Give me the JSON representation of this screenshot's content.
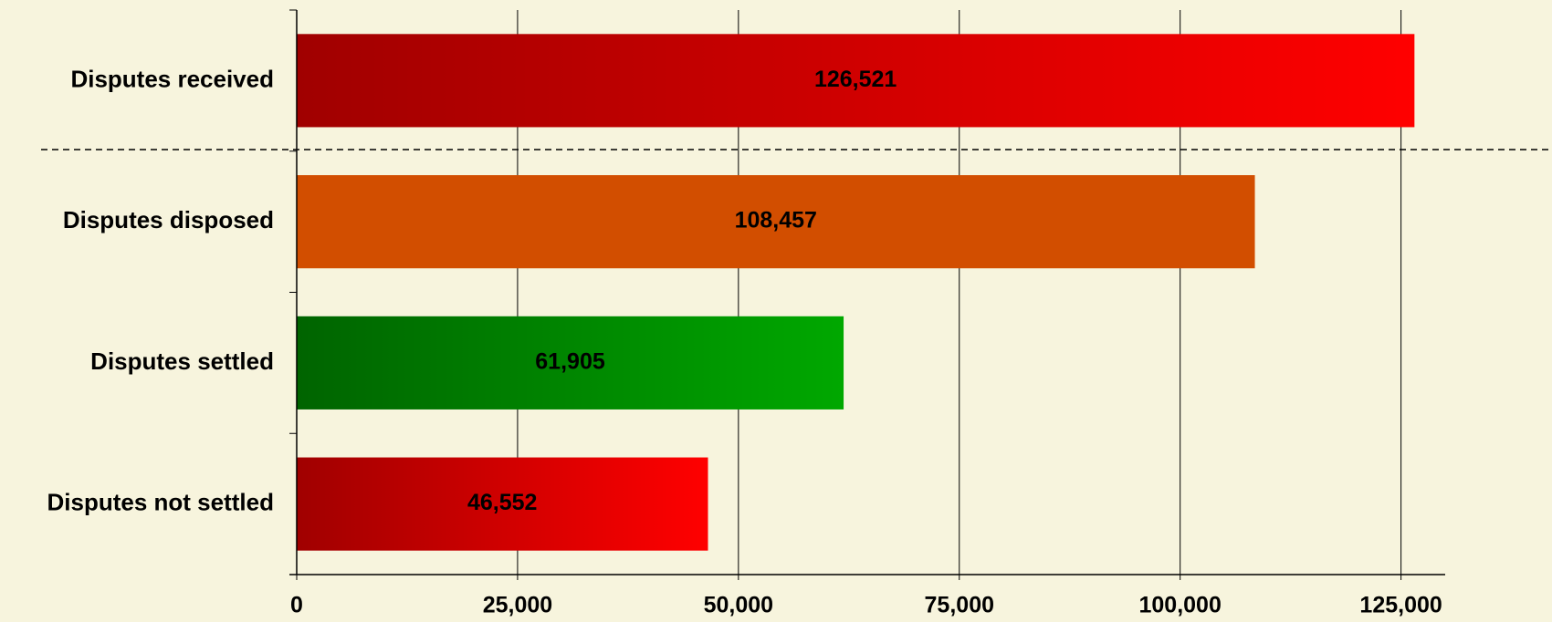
{
  "chart_data": {
    "type": "bar",
    "orientation": "horizontal",
    "categories": [
      "Disputes received",
      "Disputes disposed",
      "Disputes settled",
      "Disputes not settled"
    ],
    "values": [
      126521,
      108457,
      61905,
      46552
    ],
    "value_labels": [
      "126,521",
      "108,457",
      "61,905",
      "46,552"
    ],
    "colors": [
      [
        "#a00000",
        "#ff0000"
      ],
      [
        "#d24e00",
        "#d24e00"
      ],
      [
        "#006400",
        "#00a800"
      ],
      [
        "#a00000",
        "#ff0000"
      ]
    ],
    "xlim": [
      0,
      130000
    ],
    "xticks": [
      0,
      {
        "value": 25000,
        "label": "25,000"
      },
      {
        "value": 50000,
        "label": "50,000"
      },
      {
        "value": 75000,
        "label": "75,000"
      },
      {
        "value": 100000,
        "label": "100,000"
      },
      {
        "value": 125000,
        "label": "125,000"
      }
    ],
    "grid": true
  }
}
